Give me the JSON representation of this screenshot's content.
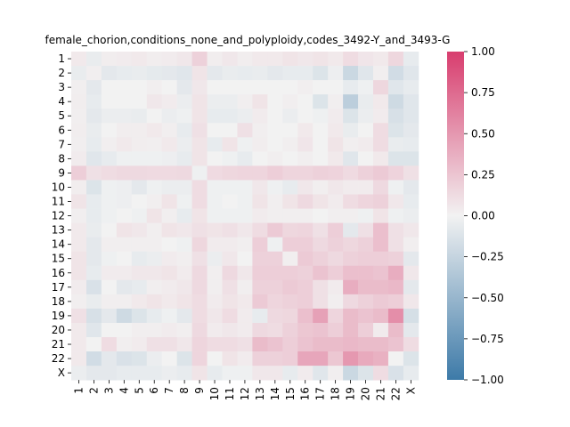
{
  "chart_data": {
    "type": "heatmap",
    "title": "female_chorion,conditions_none_and_polyploidy,codes_3492-Y_and_3493-G",
    "xlabel": "",
    "ylabel": "",
    "labels": [
      "1",
      "2",
      "3",
      "4",
      "5",
      "6",
      "7",
      "8",
      "9",
      "10",
      "11",
      "12",
      "13",
      "14",
      "15",
      "16",
      "17",
      "18",
      "19",
      "20",
      "21",
      "22",
      "X"
    ],
    "colorbar": {
      "min": -1.0,
      "max": 1.0,
      "ticks": [
        1.0,
        0.75,
        0.5,
        0.25,
        0.0,
        -0.25,
        -0.5,
        -0.75,
        -1.0
      ],
      "tick_labels": [
        "1.00",
        "0.75",
        "0.50",
        "0.25",
        "0.00",
        "−0.25",
        "−0.50",
        "−0.75",
        "−1.00"
      ],
      "low_color": "#3d7aa8",
      "mid_color": "#f2f2f2",
      "high_color": "#d83d6e"
    },
    "matrix": [
      [
        0.05,
        -0.05,
        0.03,
        0.04,
        0.05,
        0.03,
        0.04,
        0.06,
        0.18,
        0.03,
        0.06,
        0.03,
        0.05,
        0.05,
        0.08,
        0.06,
        0.08,
        0.05,
        0.12,
        0.07,
        0.05,
        0.15,
        -0.06
      ],
      [
        -0.05,
        0.02,
        -0.08,
        -0.06,
        -0.05,
        -0.07,
        -0.08,
        -0.1,
        0.08,
        -0.08,
        -0.05,
        -0.06,
        -0.05,
        -0.08,
        -0.06,
        -0.06,
        -0.12,
        -0.03,
        -0.22,
        -0.1,
        0.02,
        -0.18,
        -0.1
      ],
      [
        0.02,
        -0.08,
        0.0,
        0.0,
        0.0,
        0.02,
        0.0,
        -0.08,
        0.06,
        0.0,
        0.0,
        0.0,
        0.0,
        0.0,
        0.0,
        0.02,
        0.0,
        0.0,
        -0.06,
        -0.02,
        0.15,
        -0.1,
        -0.06
      ],
      [
        0.03,
        -0.06,
        0.0,
        0.0,
        0.0,
        0.06,
        0.04,
        -0.04,
        0.08,
        -0.04,
        -0.04,
        0.02,
        0.08,
        0.0,
        0.02,
        0.0,
        -0.12,
        0.02,
        -0.3,
        -0.05,
        0.05,
        -0.2,
        -0.1
      ],
      [
        0.02,
        -0.08,
        -0.04,
        -0.04,
        -0.05,
        0.0,
        -0.04,
        -0.02,
        0.08,
        -0.06,
        -0.06,
        -0.04,
        0.04,
        0.0,
        -0.04,
        0.0,
        -0.02,
        0.04,
        -0.12,
        -0.04,
        0.04,
        -0.15,
        -0.1
      ],
      [
        0.03,
        -0.05,
        0.0,
        0.03,
        0.03,
        0.05,
        0.02,
        -0.06,
        0.1,
        0.0,
        0.0,
        0.1,
        0.02,
        0.0,
        0.0,
        0.05,
        0.0,
        0.05,
        -0.05,
        0.0,
        0.12,
        -0.12,
        -0.08
      ],
      [
        0.02,
        -0.06,
        0.02,
        0.05,
        0.03,
        0.02,
        0.05,
        -0.04,
        0.08,
        -0.06,
        0.08,
        -0.02,
        0.03,
        0.0,
        0.02,
        0.07,
        0.0,
        0.08,
        0.02,
        0.04,
        0.12,
        -0.05,
        -0.06
      ],
      [
        0.04,
        -0.1,
        -0.06,
        -0.02,
        -0.02,
        -0.02,
        -0.03,
        -0.06,
        0.08,
        0.0,
        -0.02,
        -0.06,
        0.0,
        0.02,
        0.0,
        0.02,
        0.0,
        0.05,
        -0.1,
        0.0,
        0.05,
        -0.12,
        -0.12
      ],
      [
        0.2,
        0.1,
        0.12,
        0.14,
        0.14,
        0.13,
        0.13,
        0.14,
        -0.02,
        0.13,
        0.15,
        0.16,
        0.16,
        0.2,
        0.16,
        0.16,
        0.18,
        0.17,
        0.13,
        0.18,
        0.22,
        0.17,
        0.1
      ],
      [
        0.03,
        -0.12,
        -0.02,
        -0.03,
        -0.08,
        -0.02,
        -0.04,
        -0.04,
        0.12,
        -0.02,
        -0.02,
        -0.02,
        0.06,
        -0.02,
        -0.06,
        0.06,
        0.02,
        0.06,
        0.04,
        0.04,
        0.14,
        -0.02,
        -0.08
      ],
      [
        0.08,
        -0.06,
        -0.02,
        -0.03,
        0.0,
        0.02,
        0.08,
        -0.02,
        0.12,
        -0.02,
        0.0,
        -0.02,
        0.08,
        0.02,
        0.08,
        0.14,
        0.08,
        0.04,
        0.12,
        0.16,
        0.18,
        0.06,
        -0.06
      ],
      [
        0.02,
        -0.06,
        -0.02,
        0.0,
        -0.02,
        0.08,
        0.02,
        -0.06,
        0.08,
        -0.02,
        -0.02,
        -0.02,
        0.04,
        0.02,
        0.02,
        0.02,
        0.0,
        0.02,
        0.02,
        -0.02,
        0.08,
        -0.02,
        -0.04
      ],
      [
        0.05,
        -0.05,
        0.0,
        0.08,
        0.06,
        0.02,
        0.08,
        0.06,
        0.1,
        0.08,
        0.1,
        0.06,
        0.12,
        0.22,
        0.15,
        0.16,
        0.1,
        0.2,
        -0.08,
        0.1,
        0.28,
        0.1,
        0.06
      ],
      [
        0.05,
        -0.08,
        0.02,
        0.02,
        0.02,
        0.02,
        0.0,
        -0.02,
        0.15,
        0.04,
        0.04,
        0.02,
        0.2,
        -0.02,
        0.2,
        0.2,
        0.14,
        0.18,
        0.15,
        0.18,
        0.28,
        0.1,
        0.02
      ],
      [
        0.08,
        -0.08,
        -0.02,
        0.0,
        -0.06,
        -0.04,
        0.04,
        0.02,
        0.1,
        -0.04,
        0.06,
        0.0,
        0.18,
        0.18,
        0.02,
        0.22,
        0.18,
        0.14,
        0.18,
        0.2,
        0.2,
        0.18,
        -0.08
      ],
      [
        0.08,
        -0.06,
        0.04,
        0.04,
        0.06,
        0.06,
        0.08,
        0.04,
        0.14,
        0.02,
        0.14,
        0.06,
        0.2,
        0.2,
        0.2,
        0.18,
        0.26,
        0.2,
        0.28,
        0.28,
        0.26,
        0.38,
        0.06
      ],
      [
        0.04,
        -0.14,
        0.0,
        -0.08,
        -0.06,
        0.02,
        0.04,
        0.06,
        0.14,
        0.02,
        0.1,
        0.02,
        0.18,
        0.18,
        0.22,
        0.2,
        0.1,
        0.04,
        0.38,
        0.3,
        0.3,
        0.32,
        -0.08
      ],
      [
        0.02,
        -0.05,
        0.02,
        0.02,
        0.05,
        0.08,
        0.05,
        0.08,
        0.12,
        0.04,
        0.08,
        0.05,
        0.22,
        0.16,
        0.18,
        0.2,
        0.1,
        0.02,
        0.14,
        0.18,
        0.22,
        0.2,
        0.06
      ],
      [
        0.1,
        -0.15,
        -0.08,
        -0.2,
        -0.12,
        -0.06,
        -0.02,
        -0.08,
        0.12,
        0.06,
        0.12,
        0.04,
        -0.06,
        0.14,
        0.15,
        0.28,
        0.45,
        0.16,
        0.3,
        0.26,
        0.3,
        0.55,
        -0.16
      ],
      [
        0.05,
        -0.1,
        0.0,
        0.0,
        0.02,
        0.02,
        0.04,
        0.02,
        0.14,
        0.04,
        0.06,
        0.04,
        0.14,
        0.12,
        0.18,
        0.24,
        0.26,
        0.2,
        0.3,
        0.2,
        0.04,
        0.3,
        -0.08
      ],
      [
        0.05,
        0.0,
        0.12,
        0.02,
        0.04,
        0.1,
        0.1,
        0.06,
        0.16,
        0.12,
        0.12,
        0.1,
        0.3,
        0.26,
        0.2,
        0.26,
        0.3,
        0.3,
        0.32,
        0.3,
        0.3,
        0.26,
        0.12
      ],
      [
        0.05,
        -0.18,
        -0.08,
        -0.14,
        -0.12,
        -0.04,
        0.0,
        -0.12,
        0.16,
        0.0,
        0.08,
        0.04,
        0.18,
        0.18,
        0.2,
        0.42,
        0.42,
        0.24,
        0.5,
        0.4,
        0.36,
        0.0,
        -0.12
      ],
      [
        -0.04,
        -0.08,
        -0.08,
        -0.06,
        -0.06,
        -0.06,
        -0.04,
        -0.06,
        0.08,
        -0.06,
        -0.02,
        -0.02,
        0.06,
        0.06,
        -0.06,
        0.04,
        -0.1,
        0.02,
        -0.22,
        -0.12,
        0.12,
        -0.14,
        -0.06
      ]
    ]
  }
}
